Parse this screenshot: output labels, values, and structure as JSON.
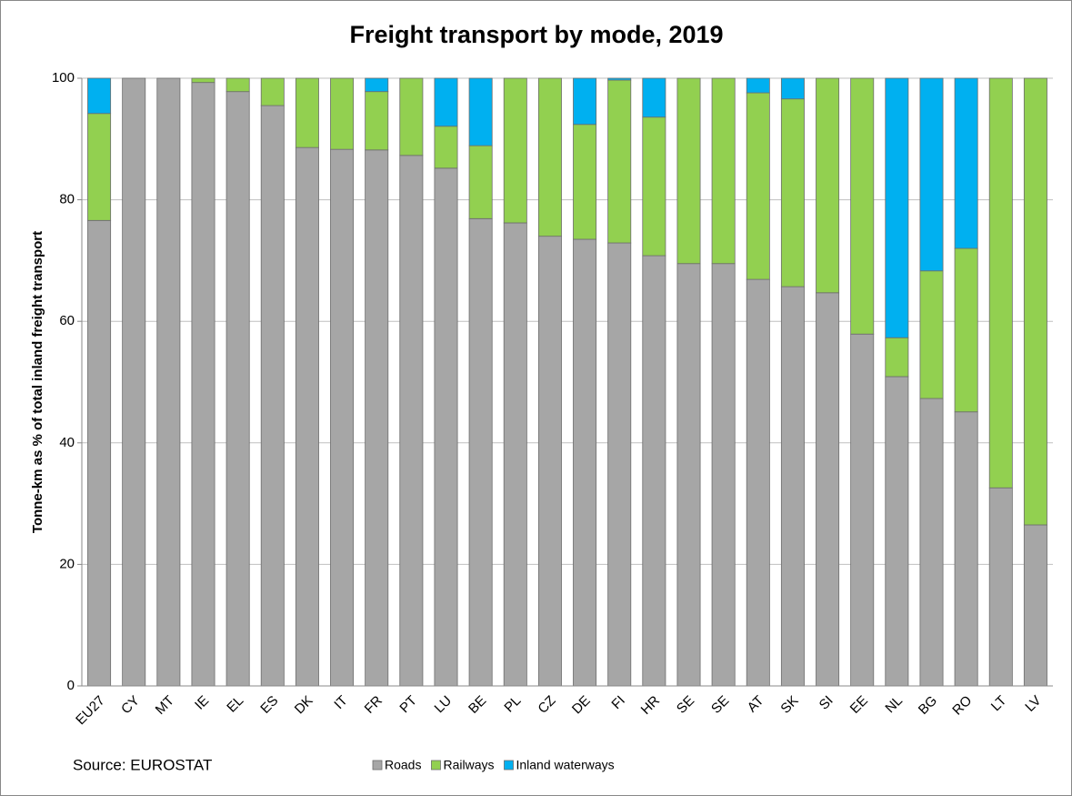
{
  "chart_data": {
    "type": "stacked_bar",
    "title": "Freight transport by mode, 2019",
    "y_label": "Tonne-km as % of total inland freight transport",
    "source": "Source: EUROSTAT",
    "categories": [
      "EU27",
      "CY",
      "MT",
      "IE",
      "EL",
      "ES",
      "DK",
      "IT",
      "FR",
      "PT",
      "LU",
      "BE",
      "PL",
      "CZ",
      "DE",
      "FI",
      "HR",
      "SE",
      "SE",
      "AT",
      "SK",
      "SI",
      "EE",
      "NL",
      "BG",
      "RO",
      "LT",
      "LV"
    ],
    "series": [
      {
        "name": "Roads",
        "color": "#a6a6a6",
        "values": [
          76.6,
          100,
          100,
          99.3,
          97.8,
          95.5,
          88.6,
          88.3,
          88.2,
          87.3,
          85.2,
          76.9,
          76.2,
          74.0,
          73.5,
          72.9,
          70.8,
          69.5,
          69.5,
          66.9,
          65.7,
          64.7,
          57.9,
          50.9,
          47.3,
          45.1,
          32.6,
          26.5
        ]
      },
      {
        "name": "Railways",
        "color": "#92d050",
        "values": [
          17.6,
          0,
          0,
          0.7,
          2.2,
          4.5,
          11.4,
          11.7,
          9.6,
          12.7,
          6.9,
          12.0,
          23.8,
          26.0,
          18.9,
          26.8,
          22.8,
          30.5,
          30.5,
          30.7,
          30.9,
          35.3,
          42.1,
          6.4,
          21.0,
          26.9,
          67.4,
          73.5
        ]
      },
      {
        "name": "Inland waterways",
        "color": "#00b0f0",
        "values": [
          5.8,
          0,
          0,
          0,
          0,
          0,
          0,
          0,
          2.2,
          0,
          7.9,
          11.1,
          0,
          0,
          7.6,
          0.3,
          6.4,
          0,
          0,
          2.4,
          3.4,
          0,
          0,
          42.7,
          31.7,
          28.0,
          0,
          0
        ]
      }
    ],
    "ylim": [
      0,
      100
    ],
    "yticks": [
      0,
      20,
      40,
      60,
      80,
      100
    ],
    "grid": true
  }
}
